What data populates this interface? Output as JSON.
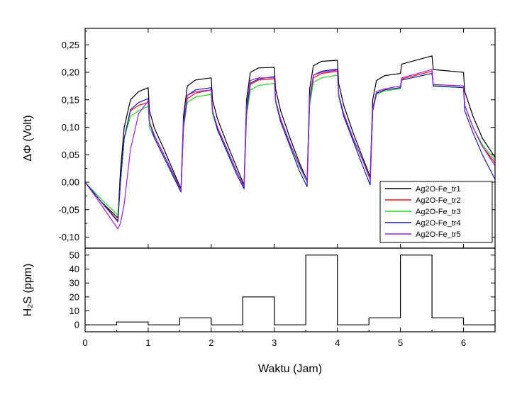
{
  "chart_data": [
    {
      "type": "line",
      "panel": "top",
      "ylabel": "ΔΦ (Volt)",
      "xlim": [
        0,
        6.5
      ],
      "ylim": [
        -0.12,
        0.28
      ],
      "yticks": [
        "-0,10",
        "-0,05",
        "0,00",
        "0,05",
        "0,10",
        "0,15",
        "0,20",
        "0,25"
      ],
      "ytick_values": [
        -0.1,
        -0.05,
        0.0,
        0.05,
        0.1,
        0.15,
        0.2,
        0.25
      ],
      "grid": false,
      "legend_position": "bottom-right",
      "series": [
        {
          "name": "Ag2O-Fe_tr1",
          "color": "#000000",
          "x": [
            0,
            0.25,
            0.52,
            0.56,
            0.62,
            0.72,
            0.85,
            1.0,
            1.02,
            1.1,
            1.25,
            1.4,
            1.52,
            1.56,
            1.62,
            1.75,
            2.0,
            2.02,
            2.1,
            2.25,
            2.4,
            2.52,
            2.56,
            2.62,
            2.75,
            3.0,
            3.02,
            3.1,
            3.25,
            3.4,
            3.52,
            3.56,
            3.62,
            3.75,
            4.0,
            4.02,
            4.1,
            4.25,
            4.4,
            4.52,
            4.56,
            4.62,
            4.75,
            5.0,
            5.02,
            5.5,
            5.52,
            6.0,
            6.02,
            6.15,
            6.3,
            6.5
          ],
          "y": [
            0,
            -0.035,
            -0.065,
            0.02,
            0.1,
            0.15,
            0.165,
            0.172,
            0.13,
            0.098,
            0.06,
            0.02,
            -0.012,
            0.12,
            0.175,
            0.186,
            0.19,
            0.15,
            0.115,
            0.07,
            0.028,
            -0.005,
            0.15,
            0.2,
            0.208,
            0.209,
            0.17,
            0.13,
            0.08,
            0.035,
            0.003,
            0.17,
            0.212,
            0.22,
            0.222,
            0.18,
            0.14,
            0.09,
            0.045,
            0.01,
            0.15,
            0.185,
            0.194,
            0.198,
            0.215,
            0.23,
            0.205,
            0.2,
            0.165,
            0.12,
            0.08,
            0.045
          ]
        },
        {
          "name": "Ag2O-Fe_tr2",
          "color": "#e8101a",
          "x": [
            0,
            0.25,
            0.52,
            0.56,
            0.62,
            0.72,
            0.85,
            1.0,
            1.02,
            1.1,
            1.25,
            1.4,
            1.52,
            1.56,
            1.62,
            1.75,
            2.0,
            2.02,
            2.1,
            2.25,
            2.4,
            2.52,
            2.56,
            2.62,
            2.75,
            3.0,
            3.02,
            3.1,
            3.25,
            3.4,
            3.52,
            3.56,
            3.62,
            3.75,
            4.0,
            4.02,
            4.1,
            4.25,
            4.4,
            4.52,
            4.56,
            4.62,
            4.75,
            5.0,
            5.02,
            5.5,
            5.52,
            6.0,
            6.02,
            6.15,
            6.3,
            6.5
          ],
          "y": [
            0,
            -0.035,
            -0.07,
            0.0,
            0.08,
            0.13,
            0.14,
            0.145,
            0.11,
            0.085,
            0.05,
            0.015,
            -0.015,
            0.1,
            0.152,
            0.162,
            0.168,
            0.13,
            0.098,
            0.06,
            0.02,
            -0.008,
            0.13,
            0.178,
            0.186,
            0.188,
            0.15,
            0.115,
            0.07,
            0.03,
            0.001,
            0.15,
            0.19,
            0.198,
            0.202,
            0.16,
            0.125,
            0.08,
            0.04,
            0.005,
            0.13,
            0.162,
            0.168,
            0.172,
            0.188,
            0.202,
            0.178,
            0.175,
            0.14,
            0.1,
            0.065,
            0.035
          ]
        },
        {
          "name": "Ag2O-Fe_tr3",
          "color": "#22d22a",
          "x": [
            0,
            0.25,
            0.52,
            0.56,
            0.62,
            0.72,
            0.85,
            1.0,
            1.02,
            1.1,
            1.25,
            1.4,
            1.52,
            1.56,
            1.62,
            1.75,
            2.0,
            2.02,
            2.1,
            2.25,
            2.4,
            2.52,
            2.56,
            2.62,
            2.75,
            3.0,
            3.02,
            3.1,
            3.25,
            3.4,
            3.52,
            3.56,
            3.62,
            3.75,
            4.0,
            4.02,
            4.1,
            4.25,
            4.4,
            4.52,
            4.56,
            4.62,
            4.75,
            5.0,
            5.02,
            5.5,
            5.52,
            6.0,
            6.02,
            6.15,
            6.3,
            6.5
          ],
          "y": [
            0,
            -0.03,
            -0.06,
            0.0,
            0.08,
            0.12,
            0.13,
            0.138,
            0.1,
            0.08,
            0.045,
            0.012,
            -0.015,
            0.1,
            0.145,
            0.155,
            0.16,
            0.125,
            0.095,
            0.058,
            0.02,
            -0.008,
            0.12,
            0.168,
            0.176,
            0.18,
            0.145,
            0.11,
            0.068,
            0.028,
            0.0,
            0.14,
            0.182,
            0.19,
            0.195,
            0.155,
            0.12,
            0.078,
            0.04,
            0.005,
            0.13,
            0.16,
            0.166,
            0.17,
            0.186,
            0.198,
            0.176,
            0.172,
            0.14,
            0.1,
            0.068,
            0.04
          ]
        },
        {
          "name": "Ag2O-Fe_tr4",
          "color": "#1a1aa8",
          "x": [
            0,
            0.25,
            0.52,
            0.56,
            0.62,
            0.72,
            0.85,
            1.0,
            1.02,
            1.1,
            1.25,
            1.4,
            1.52,
            1.56,
            1.62,
            1.75,
            2.0,
            2.02,
            2.1,
            2.25,
            2.4,
            2.52,
            2.56,
            2.62,
            2.75,
            3.0,
            3.02,
            3.1,
            3.25,
            3.4,
            3.52,
            3.56,
            3.62,
            3.75,
            4.0,
            4.02,
            4.1,
            4.25,
            4.4,
            4.52,
            4.56,
            4.62,
            4.75,
            5.0,
            5.02,
            5.5,
            5.52,
            6.0,
            6.02,
            6.15,
            6.3,
            6.5
          ],
          "y": [
            0,
            -0.035,
            -0.072,
            0.0,
            0.08,
            0.132,
            0.145,
            0.152,
            0.11,
            0.08,
            0.045,
            0.01,
            -0.018,
            0.1,
            0.158,
            0.168,
            0.172,
            0.13,
            0.095,
            0.055,
            0.015,
            -0.012,
            0.13,
            0.18,
            0.188,
            0.192,
            0.15,
            0.11,
            0.065,
            0.02,
            -0.008,
            0.15,
            0.195,
            0.202,
            0.206,
            0.16,
            0.12,
            0.075,
            0.03,
            -0.005,
            0.13,
            0.162,
            0.168,
            0.172,
            0.186,
            0.198,
            0.175,
            0.172,
            0.13,
            0.09,
            0.05,
            0.005
          ]
        },
        {
          "name": "Ag2O-Fe_tr5",
          "color": "#9b1fd8",
          "x": [
            0,
            0.25,
            0.52,
            0.56,
            0.62,
            0.72,
            0.85,
            1.0,
            1.02,
            1.1,
            1.25,
            1.4,
            1.52,
            1.56,
            1.62,
            1.75,
            2.0,
            2.02,
            2.1,
            2.25,
            2.4,
            2.52,
            2.56,
            2.62,
            2.75,
            3.0,
            3.02,
            3.1,
            3.25,
            3.4,
            3.52,
            3.56,
            3.62,
            3.75,
            4.0,
            4.02,
            4.1,
            4.25,
            4.4,
            4.52,
            4.56,
            4.62,
            4.75,
            5.0,
            5.02,
            5.5,
            5.52,
            6.0,
            6.02,
            6.15,
            6.3,
            6.5
          ],
          "y": [
            0,
            -0.04,
            -0.085,
            -0.075,
            -0.04,
            0.06,
            0.125,
            0.148,
            0.11,
            0.085,
            0.05,
            0.015,
            -0.015,
            0.11,
            0.158,
            0.165,
            0.168,
            0.13,
            0.1,
            0.06,
            0.02,
            -0.008,
            0.14,
            0.185,
            0.19,
            0.19,
            0.15,
            0.115,
            0.07,
            0.03,
            0.002,
            0.155,
            0.195,
            0.2,
            0.204,
            0.16,
            0.125,
            0.08,
            0.04,
            0.005,
            0.135,
            0.165,
            0.17,
            0.175,
            0.19,
            0.205,
            0.178,
            0.175,
            0.14,
            0.1,
            0.065,
            0.03
          ]
        }
      ]
    },
    {
      "type": "line",
      "panel": "bottom",
      "ylabel": "H₂S (ppm)",
      "xlabel": "Waktu (Jam)",
      "xlim": [
        0,
        6.5
      ],
      "ylim": [
        -5,
        55
      ],
      "xticks": [
        "0",
        "1",
        "2",
        "3",
        "4",
        "5",
        "6"
      ],
      "xtick_values": [
        0,
        1,
        2,
        3,
        4,
        5,
        6
      ],
      "yticks": [
        "0",
        "10",
        "20",
        "30",
        "40",
        "50"
      ],
      "ytick_values": [
        0,
        10,
        20,
        30,
        40,
        50
      ],
      "grid": false,
      "series": [
        {
          "color": "#000000",
          "x": [
            0,
            0.5,
            0.5,
            1.0,
            1.0,
            1.5,
            1.5,
            2.0,
            2.0,
            2.5,
            2.5,
            3.0,
            3.0,
            3.5,
            3.5,
            4.0,
            4.0,
            4.5,
            4.5,
            5.0,
            5.0,
            5.5,
            5.5,
            6.0,
            6.0,
            6.5
          ],
          "y": [
            0,
            0,
            2,
            2,
            0,
            0,
            5,
            5,
            0,
            0,
            20,
            20,
            0,
            0,
            50,
            50,
            0,
            0,
            5,
            5,
            50,
            50,
            5,
            5,
            0,
            0
          ]
        }
      ]
    }
  ],
  "legend": {
    "items": [
      "Ag2O-Fe_tr1",
      "Ag2O-Fe_tr2",
      "Ag2O-Fe_tr3",
      "Ag2O-Fe_tr4",
      "Ag2O-Fe_tr5"
    ]
  }
}
